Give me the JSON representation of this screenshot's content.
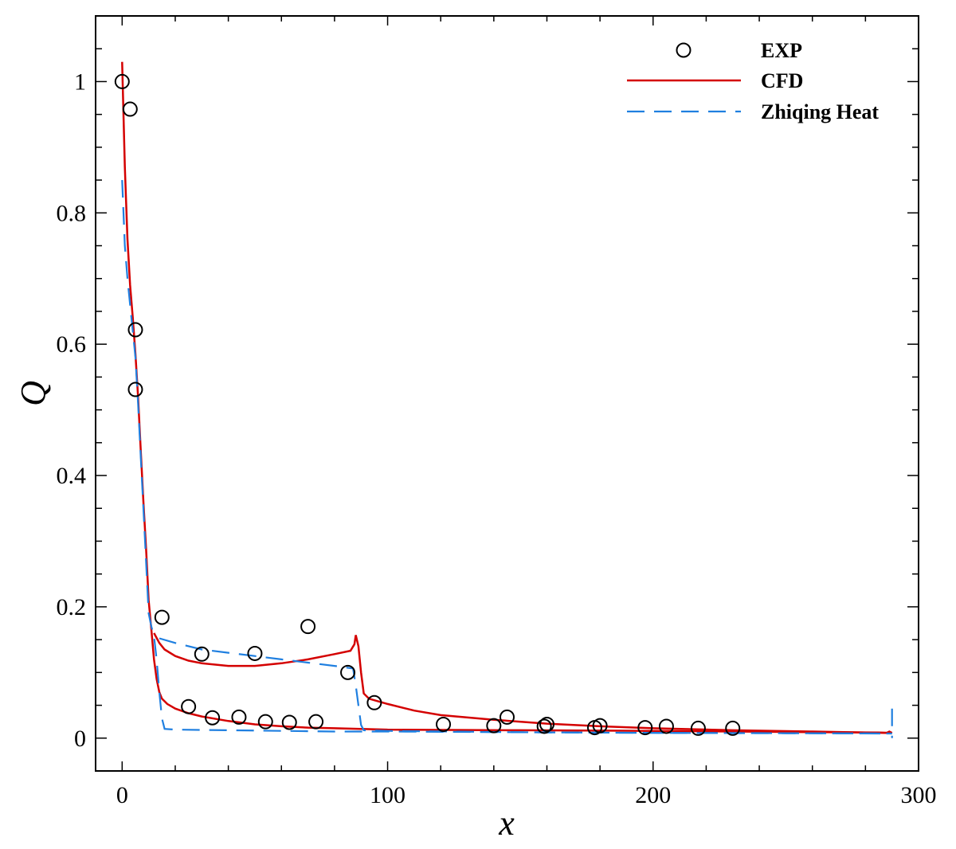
{
  "chart_data": {
    "type": "scatter",
    "xlabel": "x",
    "ylabel": "Q",
    "xlim": [
      -10,
      300
    ],
    "ylim": [
      -0.05,
      1.1
    ],
    "x_ticks": [
      0,
      100,
      200,
      300
    ],
    "x_tick_labels": [
      "0",
      "100",
      "200",
      "300"
    ],
    "y_ticks": [
      0,
      0.2,
      0.4,
      0.6,
      0.8,
      1
    ],
    "y_tick_labels": [
      "0",
      "0.2",
      "0.4",
      "0.6",
      "0.8",
      "1"
    ],
    "grid": false,
    "legend_position": "top-right",
    "colors": {
      "exp": "#000000",
      "cfd": "#d40000",
      "zhiqing": "#1f7fe0"
    },
    "series": [
      {
        "name": "EXP",
        "kind": "marker",
        "points": [
          [
            0,
            1.0
          ],
          [
            3,
            0.958
          ],
          [
            5,
            0.622
          ],
          [
            5,
            0.531
          ],
          [
            15,
            0.184
          ],
          [
            25,
            0.048
          ],
          [
            30,
            0.128
          ],
          [
            34,
            0.031
          ],
          [
            44,
            0.032
          ],
          [
            50,
            0.129
          ],
          [
            54,
            0.025
          ],
          [
            63,
            0.024
          ],
          [
            70,
            0.17
          ],
          [
            73,
            0.025
          ],
          [
            85,
            0.1
          ],
          [
            95,
            0.054
          ],
          [
            121,
            0.021
          ],
          [
            140,
            0.019
          ],
          [
            145,
            0.032
          ],
          [
            159,
            0.018
          ],
          [
            160,
            0.021
          ],
          [
            178,
            0.016
          ],
          [
            180,
            0.019
          ],
          [
            197,
            0.016
          ],
          [
            205,
            0.018
          ],
          [
            217,
            0.015
          ],
          [
            230,
            0.015
          ]
        ]
      },
      {
        "name": "CFD",
        "kind": "solid",
        "segments": [
          [
            [
              0,
              1.03
            ],
            [
              1,
              0.87
            ],
            [
              2,
              0.76
            ],
            [
              3,
              0.69
            ],
            [
              4,
              0.64
            ],
            [
              5,
              0.585
            ],
            [
              6,
              0.52
            ],
            [
              7,
              0.44
            ],
            [
              8,
              0.36
            ],
            [
              9,
              0.29
            ],
            [
              10,
              0.21
            ],
            [
              11,
              0.165
            ],
            [
              12,
              0.12
            ],
            [
              13,
              0.09
            ],
            [
              14,
              0.07
            ],
            [
              15,
              0.06
            ],
            [
              17,
              0.052
            ],
            [
              20,
              0.045
            ],
            [
              25,
              0.038
            ],
            [
              30,
              0.033
            ],
            [
              40,
              0.026
            ],
            [
              50,
              0.021
            ],
            [
              60,
              0.018
            ],
            [
              70,
              0.016
            ],
            [
              80,
              0.015
            ],
            [
              90,
              0.014
            ],
            [
              100,
              0.013
            ],
            [
              150,
              0.012
            ],
            [
              200,
              0.011
            ],
            [
              250,
              0.0095
            ],
            [
              285,
              0.0085
            ],
            [
              290,
              0.008
            ]
          ],
          [
            [
              12,
              0.16
            ],
            [
              14,
              0.145
            ],
            [
              16,
              0.135
            ],
            [
              20,
              0.125
            ],
            [
              25,
              0.118
            ],
            [
              30,
              0.114
            ],
            [
              40,
              0.11
            ],
            [
              50,
              0.11
            ],
            [
              60,
              0.114
            ],
            [
              70,
              0.12
            ],
            [
              80,
              0.128
            ],
            [
              86,
              0.133
            ],
            [
              87.5,
              0.143
            ],
            [
              88,
              0.157
            ],
            [
              89,
              0.14
            ],
            [
              90,
              0.1
            ],
            [
              91,
              0.068
            ],
            [
              93,
              0.06
            ],
            [
              100,
              0.052
            ],
            [
              110,
              0.042
            ],
            [
              120,
              0.035
            ],
            [
              140,
              0.028
            ],
            [
              160,
              0.022
            ],
            [
              180,
              0.018
            ],
            [
              200,
              0.015
            ],
            [
              230,
              0.012
            ],
            [
              260,
              0.01
            ],
            [
              288,
              0.008
            ],
            [
              289,
              0.01
            ],
            [
              290,
              0.008
            ]
          ]
        ]
      },
      {
        "name": "Zhiqing Heat",
        "kind": "dashed",
        "segments": [
          [
            [
              0,
              0.85
            ],
            [
              0.5,
              0.8
            ],
            [
              1,
              0.75
            ],
            [
              2,
              0.7
            ],
            [
              3,
              0.66
            ],
            [
              4,
              0.62
            ],
            [
              5,
              0.58
            ],
            [
              6,
              0.51
            ],
            [
              7,
              0.43
            ],
            [
              8,
              0.35
            ],
            [
              9,
              0.27
            ],
            [
              10,
              0.19
            ],
            [
              11,
              0.17
            ],
            [
              12,
              0.155
            ],
            [
              13,
              0.12
            ],
            [
              14,
              0.07
            ],
            [
              15,
              0.03
            ],
            [
              16,
              0.014
            ],
            [
              20,
              0.013
            ],
            [
              40,
              0.012
            ],
            [
              60,
              0.011
            ],
            [
              80,
              0.01
            ],
            [
              100,
              0.01
            ],
            [
              150,
              0.009
            ],
            [
              200,
              0.008
            ],
            [
              250,
              0.0075
            ],
            [
              290,
              0.007
            ]
          ],
          [
            [
              14,
              0.152
            ],
            [
              20,
              0.145
            ],
            [
              30,
              0.135
            ],
            [
              40,
              0.13
            ],
            [
              50,
              0.125
            ],
            [
              60,
              0.12
            ],
            [
              70,
              0.115
            ],
            [
              80,
              0.11
            ],
            [
              87,
              0.106
            ],
            [
              88,
              0.08
            ],
            [
              89,
              0.05
            ],
            [
              90,
              0.02
            ],
            [
              91,
              0.012
            ],
            [
              100,
              0.011
            ],
            [
              150,
              0.009
            ],
            [
              200,
              0.008
            ],
            [
              250,
              0.0075
            ],
            [
              288,
              0.007
            ]
          ],
          [
            [
              290,
              0.045
            ],
            [
              290,
              0.0
            ]
          ]
        ]
      }
    ]
  }
}
